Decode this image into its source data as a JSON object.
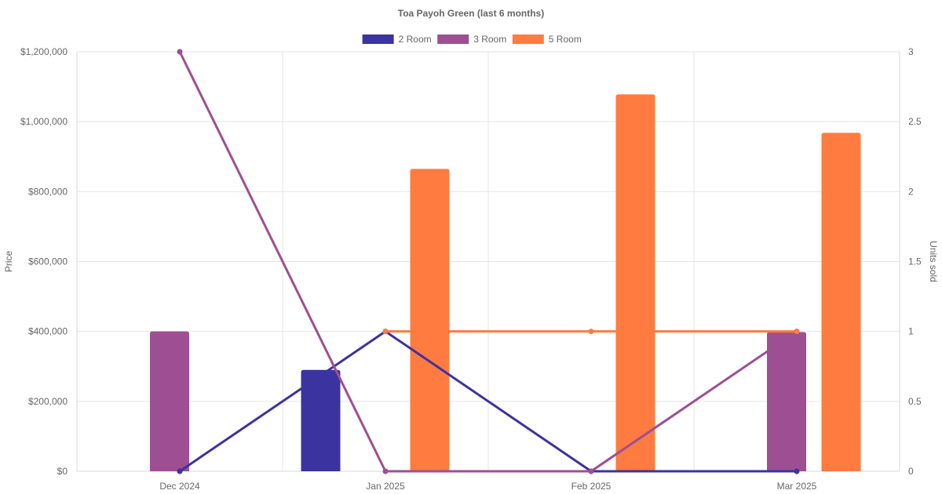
{
  "chart_data": {
    "type": "bar",
    "title": "Toa Payoh Green (last 6 months)",
    "categories": [
      "Dec 2024",
      "Jan 2025",
      "Feb 2025",
      "Mar 2025"
    ],
    "y_left": {
      "label": "Price",
      "range": [
        0,
        1200000
      ],
      "ticks": [
        0,
        200000,
        400000,
        600000,
        800000,
        1000000,
        1200000
      ],
      "tick_labels": [
        "$0",
        "$200,000",
        "$400,000",
        "$600,000",
        "$800,000",
        "$1,000,000",
        "$1,200,000"
      ]
    },
    "y_right": {
      "label": "Units sold",
      "range": [
        0,
        3
      ],
      "ticks": [
        0,
        0.5,
        1,
        1.5,
        2,
        2.5,
        3
      ],
      "tick_labels": [
        "0",
        "0.5",
        "1",
        "1.5",
        "2",
        "2.5",
        "3"
      ]
    },
    "grid": true,
    "legend_position": "top-center",
    "series": [
      {
        "name": "2 Room",
        "color": "#3b33a0",
        "prices": [
          null,
          290000,
          null,
          null
        ],
        "units": [
          0,
          1,
          0,
          0
        ]
      },
      {
        "name": "3 Room",
        "color": "#9e4f93",
        "prices": [
          400000,
          null,
          null,
          398000
        ],
        "units": [
          3,
          0,
          0,
          1
        ]
      },
      {
        "name": "5 Room",
        "color": "#ff7b40",
        "prices": [
          null,
          865000,
          1078000,
          968000
        ],
        "units": [
          null,
          1,
          1,
          1
        ]
      }
    ]
  }
}
